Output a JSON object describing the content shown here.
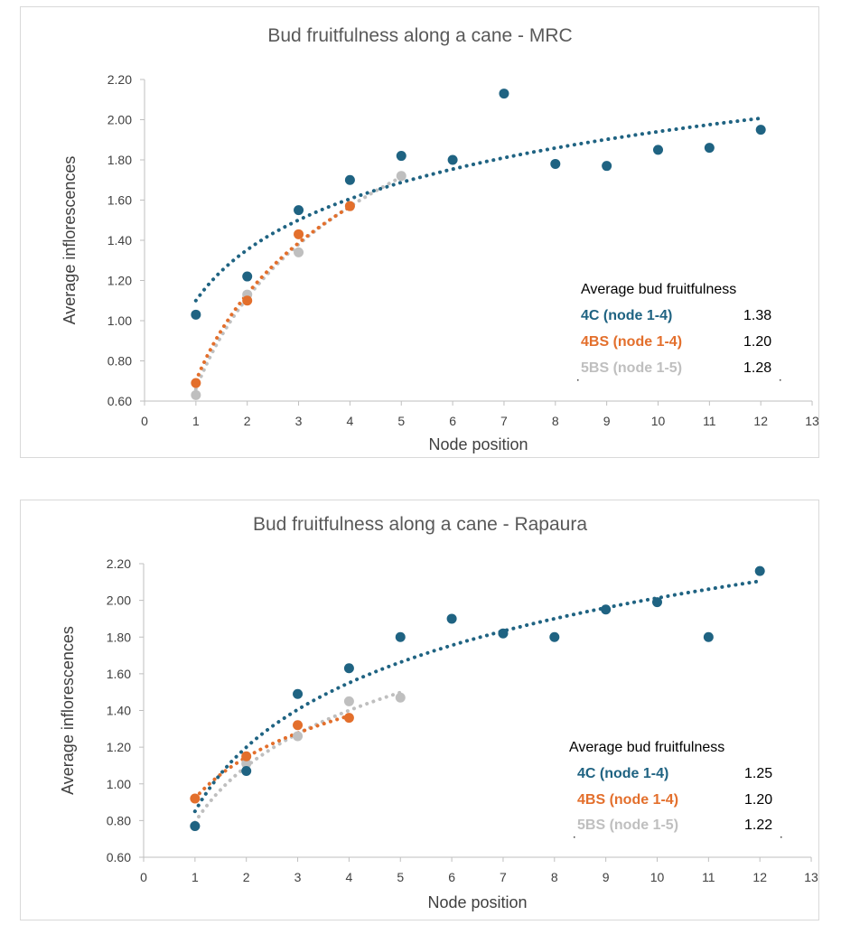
{
  "chart_data": [
    {
      "id": "mrc",
      "type": "scatter",
      "title": "Bud fruitfulness along a cane - MRC",
      "xlabel": "Node position",
      "ylabel": "Average inflorescences",
      "xlim": [
        0,
        13
      ],
      "ylim": [
        0.6,
        2.2
      ],
      "xticks": [
        "0",
        "1",
        "2",
        "3",
        "4",
        "5",
        "6",
        "7",
        "8",
        "9",
        "10",
        "11",
        "12",
        "13"
      ],
      "yticks": [
        "0.60",
        "0.80",
        "1.00",
        "1.20",
        "1.40",
        "1.60",
        "1.80",
        "2.00",
        "2.20"
      ],
      "series": [
        {
          "name": "4C",
          "color": "#1f6382",
          "x": [
            1,
            2,
            3,
            4,
            5,
            6,
            7,
            8,
            9,
            10,
            11,
            12
          ],
          "values": [
            1.03,
            1.22,
            1.55,
            1.7,
            1.82,
            1.8,
            2.13,
            1.78,
            1.77,
            1.85,
            1.86,
            1.95
          ],
          "trend": {
            "a": 1.1,
            "b": 0.365,
            "from": 1,
            "to": 12
          }
        },
        {
          "name": "4BS",
          "color": "#e36f2c",
          "x": [
            1,
            2,
            3,
            4
          ],
          "values": [
            0.69,
            1.1,
            1.43,
            1.57
          ],
          "trend": {
            "a": 0.7,
            "b": 0.625,
            "from": 1,
            "to": 4
          }
        },
        {
          "name": "5BS",
          "color": "#bfbfbf",
          "x": [
            1,
            2,
            3,
            4,
            5
          ],
          "values": [
            0.63,
            1.13,
            1.34,
            1.57,
            1.72
          ],
          "trend": {
            "a": 0.66,
            "b": 0.655,
            "from": 1,
            "to": 5
          }
        }
      ],
      "legend": {
        "heading": "Average bud fruitfulness",
        "items": [
          {
            "label": "4C (node 1-4)",
            "value": "1.38",
            "color": "#1f6382"
          },
          {
            "label": "4BS (node 1-4)",
            "value": "1.20",
            "color": "#e36f2c"
          },
          {
            "label": "5BS (node 1-5)",
            "value": "1.28",
            "color": "#bfbfbf"
          }
        ]
      }
    },
    {
      "id": "rapaura",
      "type": "scatter",
      "title": "Bud fruitfulness along a cane - Rapaura",
      "xlabel": "Node position",
      "ylabel": "Average inflorescences",
      "xlim": [
        0,
        13
      ],
      "ylim": [
        0.6,
        2.2
      ],
      "xticks": [
        "0",
        "1",
        "2",
        "3",
        "4",
        "5",
        "6",
        "7",
        "8",
        "9",
        "10",
        "11",
        "12",
        "13"
      ],
      "yticks": [
        "0.60",
        "0.80",
        "1.00",
        "1.20",
        "1.40",
        "1.60",
        "1.80",
        "2.00",
        "2.20"
      ],
      "series": [
        {
          "name": "4C",
          "color": "#1f6382",
          "x": [
            1,
            2,
            3,
            4,
            5,
            6,
            7,
            8,
            9,
            10,
            11,
            12
          ],
          "values": [
            0.77,
            1.07,
            1.49,
            1.63,
            1.8,
            1.9,
            1.82,
            1.8,
            1.95,
            1.99,
            1.8,
            2.16
          ],
          "trend": {
            "a": 0.85,
            "b": 0.505,
            "from": 1,
            "to": 12
          }
        },
        {
          "name": "4BS",
          "color": "#e36f2c",
          "x": [
            1,
            2,
            3,
            4
          ],
          "values": [
            0.92,
            1.15,
            1.32,
            1.36
          ],
          "trend": {
            "a": 0.92,
            "b": 0.325,
            "from": 1,
            "to": 4
          }
        },
        {
          "name": "5BS",
          "color": "#bfbfbf",
          "x": [
            1,
            2,
            3,
            4,
            5
          ],
          "values": [
            0.77,
            1.11,
            1.26,
            1.45,
            1.47
          ],
          "trend": {
            "a": 0.79,
            "b": 0.44,
            "from": 1,
            "to": 5
          }
        }
      ],
      "legend": {
        "heading": "Average bud fruitfulness",
        "items": [
          {
            "label": "4C (node 1-4)",
            "value": "1.25",
            "color": "#1f6382"
          },
          {
            "label": "4BS (node 1-4)",
            "value": "1.20",
            "color": "#e36f2c"
          },
          {
            "label": "5BS (node 1-5)",
            "value": "1.22",
            "color": "#bfbfbf"
          }
        ]
      }
    }
  ]
}
